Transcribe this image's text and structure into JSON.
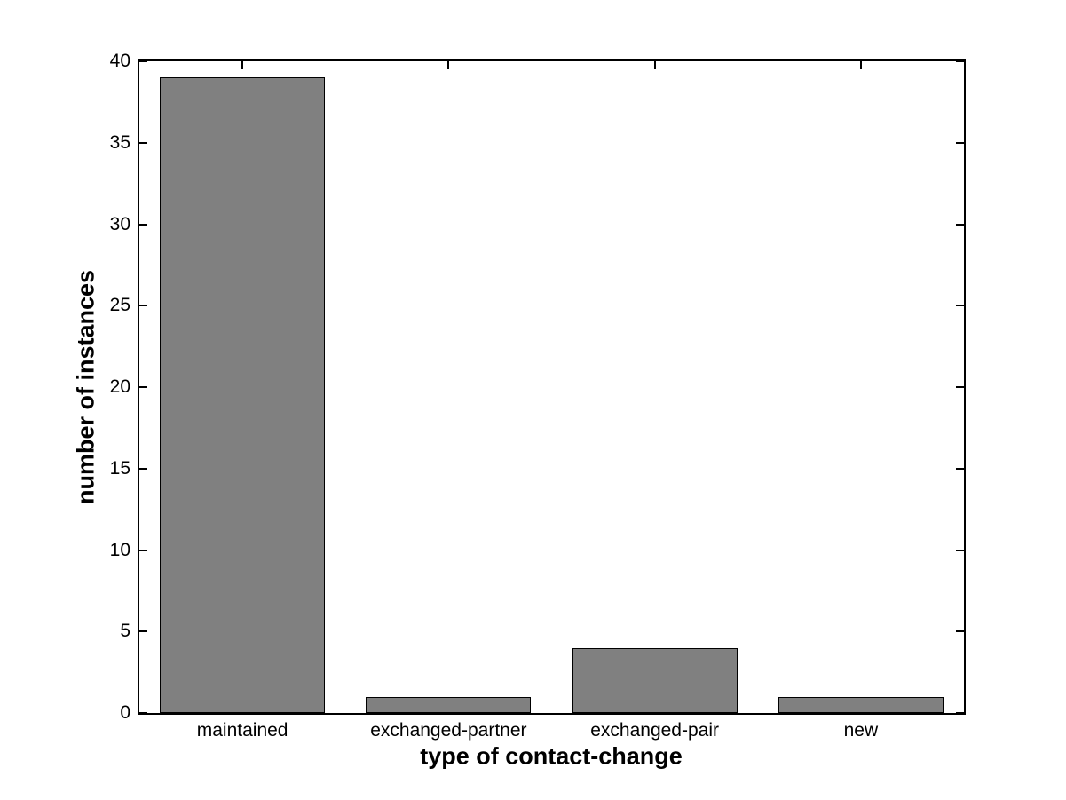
{
  "chart_data": {
    "type": "bar",
    "title": "",
    "xlabel": "type of contact-change",
    "ylabel": "number of instances",
    "categories": [
      "maintained",
      "exchanged-partner",
      "exchanged-pair",
      "new"
    ],
    "values": [
      39,
      1,
      4,
      1
    ],
    "ylim": [
      0,
      40
    ],
    "yticks": [
      0,
      5,
      10,
      15,
      20,
      25,
      30,
      35,
      40
    ],
    "bar_width_fraction": 0.8,
    "grid": false,
    "legend": null,
    "box": true,
    "colors": {
      "bar_fill": "#808080",
      "bar_edge": "#000000",
      "axis": "#000000",
      "text": "#000000",
      "background": "#ffffff"
    }
  }
}
